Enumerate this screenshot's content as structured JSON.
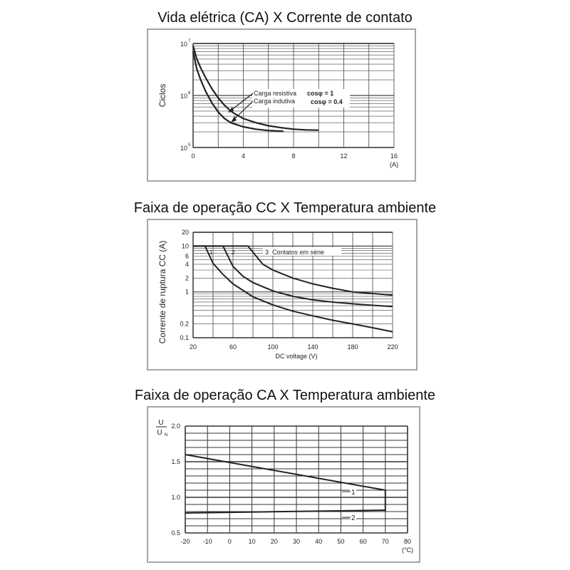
{
  "chart_data": [
    {
      "type": "line",
      "title": "Vida elétrica (CA) X Corrente de contato",
      "ylabel": "Ciclos",
      "xunit": "(A)",
      "yscale": "log",
      "xlim": [
        0,
        16
      ],
      "ylim": [
        100000,
        10000000
      ],
      "xticks": [
        "0",
        "4",
        "8",
        "12",
        "16"
      ],
      "yticks": [
        {
          "base": "10",
          "exp": "7"
        },
        {
          "base": "10",
          "exp": "6"
        },
        {
          "base": "10",
          "exp": "5"
        }
      ],
      "grid": true,
      "series": [
        {
          "name": "Carga resistiva cosφ = 1",
          "x": [
            0,
            0.3,
            0.6,
            1,
            1.5,
            2,
            2.5,
            3,
            3.5,
            4,
            5,
            6,
            7,
            8,
            9,
            10
          ],
          "y": [
            9000000,
            5000000,
            3400000,
            2200000,
            1350000,
            900000,
            650000,
            500000,
            420000,
            360000,
            300000,
            262000,
            240000,
            225000,
            218000,
            215000
          ]
        },
        {
          "name": "Carga indutiva cosφ = 0.4",
          "x": [
            0,
            0.3,
            0.6,
            1,
            1.5,
            2,
            2.5,
            3,
            4,
            5,
            6,
            7.2
          ],
          "y": [
            7000000,
            3200000,
            2000000,
            1200000,
            720000,
            480000,
            360000,
            300000,
            250000,
            225000,
            212000,
            205000
          ]
        }
      ],
      "annotations": [
        "Carga resistiva",
        "cosφ = 1",
        "Carga indutiva",
        "cosφ = 0.4"
      ]
    },
    {
      "type": "line",
      "title": "Faixa de operação CC X Temperatura ambiente",
      "ylabel": "Corrente de ruptura CC (A)",
      "xlabel": "DC voltage (V)",
      "yscale": "log",
      "xlim": [
        20,
        220
      ],
      "ylim": [
        0.1,
        20
      ],
      "xticks": [
        "20",
        "60",
        "100",
        "140",
        "180",
        "220"
      ],
      "yticks": [
        "20",
        "10",
        "6",
        "4",
        "2",
        "1",
        "0.2",
        "0.1"
      ],
      "grid": true,
      "series": [
        {
          "name": "1",
          "x": [
            20,
            32,
            40,
            50,
            60,
            80,
            100,
            120,
            140,
            160,
            180,
            200,
            220
          ],
          "y": [
            10,
            10,
            4.2,
            2.4,
            1.5,
            0.78,
            0.52,
            0.38,
            0.3,
            0.24,
            0.2,
            0.165,
            0.135
          ]
        },
        {
          "name": "2",
          "x": [
            20,
            50,
            60,
            70,
            80,
            100,
            120,
            140,
            160,
            180,
            200,
            220
          ],
          "y": [
            10,
            10,
            3.6,
            2.2,
            1.6,
            1.05,
            0.8,
            0.67,
            0.6,
            0.55,
            0.51,
            0.48
          ]
        },
        {
          "name": "3",
          "x": [
            20,
            75,
            90,
            100,
            120,
            140,
            160,
            180,
            200,
            220
          ],
          "y": [
            10,
            10,
            4.0,
            3.0,
            2.0,
            1.5,
            1.2,
            1.0,
            0.92,
            0.85
          ]
        }
      ],
      "annotations": [
        "1",
        "2",
        "3",
        "Contatos em série"
      ]
    },
    {
      "type": "line",
      "title": "Faixa de operação CA X Temperatura ambiente",
      "ylabel_top": "U",
      "ylabel_bottom": "U",
      "ylabel_bottom_sub": "N",
      "xunit": "(°C)",
      "xlim": [
        -20,
        80
      ],
      "ylim": [
        0.5,
        2.0
      ],
      "xticks": [
        "-20",
        "-10",
        "0",
        "10",
        "20",
        "30",
        "40",
        "50",
        "60",
        "70",
        "80"
      ],
      "yticks": [
        "2.0",
        "1.5",
        "1.0",
        "0.5"
      ],
      "grid": true,
      "series": [
        {
          "name": "1",
          "x": [
            -20,
            70,
            70
          ],
          "y": [
            1.6,
            1.1,
            0.8
          ]
        },
        {
          "name": "2",
          "x": [
            -20,
            70
          ],
          "y": [
            0.78,
            0.82
          ]
        }
      ],
      "annotations": [
        "1",
        "2"
      ]
    }
  ]
}
